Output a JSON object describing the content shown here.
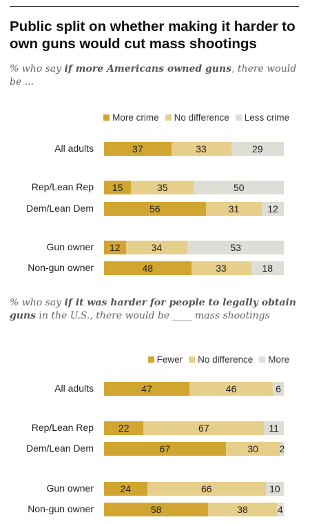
{
  "title": "Public split on whether making it harder to own guns would cut mass shootings",
  "colors": {
    "dark_gold": "#d1a630",
    "light_gold": "#e6cf8b",
    "gray": "#deddd6"
  },
  "chart_data": [
    {
      "type": "bar",
      "orientation": "horizontal",
      "stacked": true,
      "subtitle_prefix": "% who say ",
      "subtitle_emphasis": "if more Americans owned guns",
      "subtitle_suffix": ", there would be ...",
      "categories": [
        "All adults",
        "Rep/Lean Rep",
        "Dem/Lean Dem",
        "Gun owner",
        "Non-gun owner"
      ],
      "series": [
        {
          "name": "More crime",
          "color": "#d1a630",
          "values": [
            37,
            15,
            56,
            12,
            48
          ]
        },
        {
          "name": "No difference",
          "color": "#e6cf8b",
          "values": [
            33,
            35,
            31,
            34,
            33
          ]
        },
        {
          "name": "Less crime",
          "color": "#deddd6",
          "values": [
            29,
            50,
            12,
            53,
            18
          ]
        }
      ]
    },
    {
      "type": "bar",
      "orientation": "horizontal",
      "stacked": true,
      "subtitle_prefix": "% who say ",
      "subtitle_emphasis": "if it was harder for people to legally obtain guns",
      "subtitle_suffix": " in the U.S., there would be ____ mass shootings",
      "categories": [
        "All adults",
        "Rep/Lean Rep",
        "Dem/Lean Dem",
        "Gun owner",
        "Non-gun owner"
      ],
      "series": [
        {
          "name": "Fewer",
          "color": "#d1a630",
          "values": [
            47,
            22,
            67,
            24,
            58
          ]
        },
        {
          "name": "No difference",
          "color": "#e6cf8b",
          "values": [
            46,
            67,
            30,
            66,
            38
          ]
        },
        {
          "name": "More",
          "color": "#deddd6",
          "values": [
            6,
            11,
            2,
            10,
            4
          ]
        }
      ]
    }
  ]
}
